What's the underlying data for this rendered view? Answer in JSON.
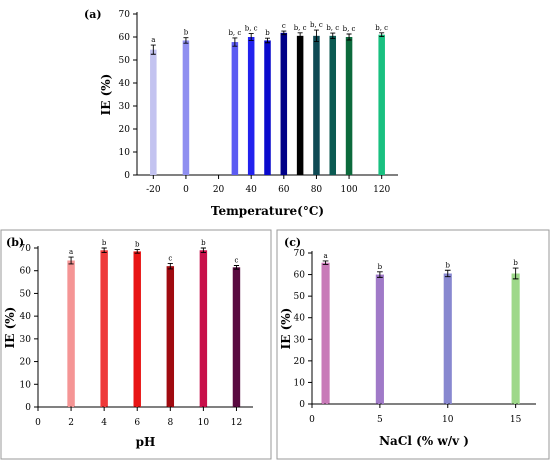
{
  "chart_data": [
    {
      "id": "a",
      "type": "bar",
      "panel_label": "(a)",
      "xlabel": "Temperature(°C)",
      "ylabel": "IE (%)",
      "xlim": [
        -30,
        130
      ],
      "ylim": [
        0,
        70
      ],
      "xticks": [
        -20,
        0,
        20,
        40,
        60,
        80,
        100,
        120
      ],
      "yticks": [
        0,
        10,
        20,
        30,
        40,
        50,
        60,
        70
      ],
      "bar_width": 4,
      "points": [
        {
          "x": -20,
          "y": 54.5,
          "err": 2.0,
          "sig": "a",
          "color": "#c3c3f0"
        },
        {
          "x": 0,
          "y": 58.5,
          "err": 1.2,
          "sig": "b",
          "color": "#8f8ff0"
        },
        {
          "x": 30,
          "y": 57.8,
          "err": 1.8,
          "sig": "b, c",
          "color": "#5b5bf2"
        },
        {
          "x": 40,
          "y": 60.0,
          "err": 1.5,
          "sig": "b, c",
          "color": "#2222ee"
        },
        {
          "x": 50,
          "y": 58.5,
          "err": 1.0,
          "sig": "b",
          "color": "#0909cc"
        },
        {
          "x": 60,
          "y": 61.8,
          "err": 0.8,
          "sig": "c",
          "color": "#000088"
        },
        {
          "x": 70,
          "y": 60.5,
          "err": 1.3,
          "sig": "b, c",
          "color": "#000000"
        },
        {
          "x": 80,
          "y": 60.5,
          "err": 2.5,
          "sig": "b, c",
          "color": "#0e4a54"
        },
        {
          "x": 90,
          "y": 60.5,
          "err": 1.2,
          "sig": "b, c",
          "color": "#0b5a52"
        },
        {
          "x": 100,
          "y": 60.0,
          "err": 1.3,
          "sig": "b, c",
          "color": "#0c6a3c"
        },
        {
          "x": 120,
          "y": 61.0,
          "err": 0.8,
          "sig": "b, c",
          "color": "#19c080"
        }
      ]
    },
    {
      "id": "b",
      "type": "bar",
      "panel_label": "(b)",
      "xlabel": "pH",
      "ylabel": "IE (%)",
      "xlim": [
        0,
        13
      ],
      "ylim": [
        0,
        70
      ],
      "xticks": [
        0,
        2,
        4,
        6,
        8,
        10,
        12
      ],
      "yticks": [
        0,
        10,
        20,
        30,
        40,
        50,
        60,
        70
      ],
      "bar_width": 0.45,
      "points": [
        {
          "x": 2,
          "y": 64.5,
          "err": 1.5,
          "sig": "a",
          "color": "#f59595"
        },
        {
          "x": 4,
          "y": 69.0,
          "err": 1.0,
          "sig": "b",
          "color": "#ee3a3a"
        },
        {
          "x": 6,
          "y": 68.5,
          "err": 0.8,
          "sig": "b",
          "color": "#e81515"
        },
        {
          "x": 8,
          "y": 62.0,
          "err": 1.2,
          "sig": "c",
          "color": "#a00a10"
        },
        {
          "x": 10,
          "y": 69.0,
          "err": 1.0,
          "sig": "b",
          "color": "#c8104a"
        },
        {
          "x": 12,
          "y": 61.5,
          "err": 0.8,
          "sig": "c",
          "color": "#5a0a40"
        }
      ]
    },
    {
      "id": "c",
      "type": "bar",
      "panel_label": "(c)",
      "xlabel": "NaCl  (% w/v )",
      "ylabel": "IE (%)",
      "xlim": [
        0,
        16.5
      ],
      "ylim": [
        0,
        70
      ],
      "xticks": [
        0,
        5,
        10,
        15
      ],
      "yticks": [
        0,
        10,
        20,
        30,
        40,
        50,
        60,
        70
      ],
      "bar_width": 0.6,
      "points": [
        {
          "x": 1,
          "y": 65.5,
          "err": 0.8,
          "sig": "a",
          "color": "#c87ab8"
        },
        {
          "x": 5,
          "y": 60.0,
          "err": 1.3,
          "sig": "b",
          "color": "#a07ac8"
        },
        {
          "x": 10,
          "y": 60.5,
          "err": 1.5,
          "sig": "b",
          "color": "#8888d0"
        },
        {
          "x": 15,
          "y": 60.5,
          "err": 2.5,
          "sig": "b",
          "color": "#9ed88a"
        }
      ]
    }
  ]
}
